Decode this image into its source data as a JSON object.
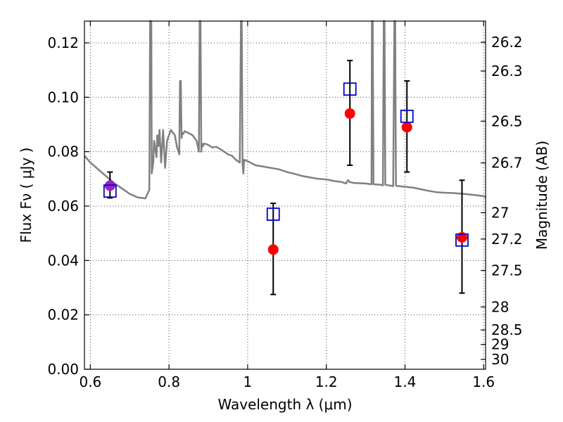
{
  "chart_data": {
    "type": "scatter",
    "title": "",
    "xlabel": "Wavelength  λ (μm)",
    "ylabel": "Flux  Fν  ( μJy )",
    "y2label": "Magnitude (AB)",
    "xlim": [
      0.585,
      1.605
    ],
    "ylim": [
      0.0,
      0.128
    ],
    "xticks": [
      {
        "value": 0.6,
        "label": "0.6"
      },
      {
        "value": 0.8,
        "label": "0.8"
      },
      {
        "value": 1.0,
        "label": "1"
      },
      {
        "value": 1.2,
        "label": "1.2"
      },
      {
        "value": 1.4,
        "label": "1.4"
      },
      {
        "value": 1.6,
        "label": "1.6"
      }
    ],
    "yticks": [
      {
        "value": 0.0,
        "label": "0.00"
      },
      {
        "value": 0.02,
        "label": "0.02"
      },
      {
        "value": 0.04,
        "label": "0.04"
      },
      {
        "value": 0.06,
        "label": "0.06"
      },
      {
        "value": 0.08,
        "label": "0.08"
      },
      {
        "value": 0.1,
        "label": "0.10"
      },
      {
        "value": 0.12,
        "label": "0.12"
      }
    ],
    "y2ticks": [
      {
        "mag": 26.2,
        "label": "26.2"
      },
      {
        "mag": 26.3,
        "label": "26.3"
      },
      {
        "mag": 26.5,
        "label": "26.5"
      },
      {
        "mag": 26.7,
        "label": "26.7"
      },
      {
        "mag": 27.0,
        "label": "27"
      },
      {
        "mag": 27.2,
        "label": "27.2"
      },
      {
        "mag": 27.5,
        "label": "27.5"
      },
      {
        "mag": 28.0,
        "label": "28"
      },
      {
        "mag": 28.5,
        "label": "28.5"
      },
      {
        "mag": 29.0,
        "label": "29"
      },
      {
        "mag": 30.0,
        "label": "30"
      }
    ],
    "grid": true,
    "colors": {
      "model": "#808080",
      "observed": "#ff0000",
      "observed_first": "#a020c8",
      "model_phot": "#0000cc"
    },
    "model_spectrum": {
      "x": [
        0.585,
        0.6,
        0.62,
        0.64,
        0.66,
        0.68,
        0.7,
        0.72,
        0.74,
        0.75,
        0.752,
        0.755,
        0.756,
        0.76,
        0.762,
        0.768,
        0.77,
        0.773,
        0.776,
        0.78,
        0.785,
        0.79,
        0.795,
        0.8,
        0.805,
        0.81,
        0.815,
        0.82,
        0.826,
        0.828,
        0.83,
        0.832,
        0.834,
        0.836,
        0.84,
        0.85,
        0.86,
        0.87,
        0.876,
        0.878,
        0.88,
        0.882,
        0.884,
        0.886,
        0.89,
        0.9,
        0.91,
        0.92,
        0.93,
        0.94,
        0.95,
        0.96,
        0.97,
        0.98,
        0.983,
        0.985,
        0.987,
        0.989,
        0.991,
        1.0,
        1.02,
        1.04,
        1.06,
        1.08,
        1.1,
        1.12,
        1.14,
        1.16,
        1.18,
        1.2,
        1.22,
        1.24,
        1.25,
        1.255,
        1.26,
        1.27,
        1.3,
        1.315,
        1.316,
        1.318,
        1.32,
        1.34,
        1.344,
        1.346,
        1.348,
        1.35,
        1.36,
        1.37,
        1.373,
        1.375,
        1.377,
        1.38,
        1.4,
        1.42,
        1.44,
        1.46,
        1.48,
        1.5,
        1.52,
        1.54,
        1.56,
        1.58,
        1.6,
        1.605
      ],
      "y": [
        0.0785,
        0.076,
        0.0735,
        0.071,
        0.0685,
        0.0665,
        0.0645,
        0.0632,
        0.0628,
        0.066,
        0.13,
        0.13,
        0.072,
        0.076,
        0.084,
        0.078,
        0.086,
        0.082,
        0.088,
        0.076,
        0.088,
        0.074,
        0.084,
        0.086,
        0.088,
        0.087,
        0.086,
        0.082,
        0.079,
        0.106,
        0.106,
        0.085,
        0.087,
        0.0865,
        0.0875,
        0.0868,
        0.086,
        0.084,
        0.08,
        0.13,
        0.13,
        0.08,
        0.083,
        0.082,
        0.083,
        0.0825,
        0.0815,
        0.0818,
        0.081,
        0.08,
        0.079,
        0.0785,
        0.077,
        0.076,
        0.13,
        0.13,
        0.076,
        0.072,
        0.077,
        0.0765,
        0.075,
        0.0745,
        0.074,
        0.0735,
        0.0725,
        0.0718,
        0.071,
        0.0705,
        0.07,
        0.0698,
        0.0692,
        0.0688,
        0.0683,
        0.0695,
        0.0688,
        0.0685,
        0.0683,
        0.068,
        0.13,
        0.13,
        0.068,
        0.0678,
        0.0676,
        0.13,
        0.13,
        0.0678,
        0.0676,
        0.0673,
        0.13,
        0.13,
        0.0676,
        0.0674,
        0.0671,
        0.0668,
        0.0662,
        0.0656,
        0.0651,
        0.0649,
        0.0648,
        0.0646,
        0.0643,
        0.064,
        0.0637,
        0.0632
      ]
    },
    "series": [
      {
        "x": [
          0.65,
          1.065,
          1.26,
          1.405,
          1.545
        ],
        "y": [
          0.0675,
          0.044,
          0.094,
          0.089,
          0.0485
        ],
        "yerr_low": [
          0.0045,
          0.0165,
          0.019,
          0.0165,
          0.0205
        ],
        "yerr_high": [
          0.005,
          0.017,
          0.0195,
          0.017,
          0.021
        ]
      },
      {
        "x": [
          0.65,
          1.065,
          1.26,
          1.405,
          1.545
        ],
        "y": [
          0.0655,
          0.057,
          0.103,
          0.093,
          0.0475
        ]
      }
    ]
  }
}
